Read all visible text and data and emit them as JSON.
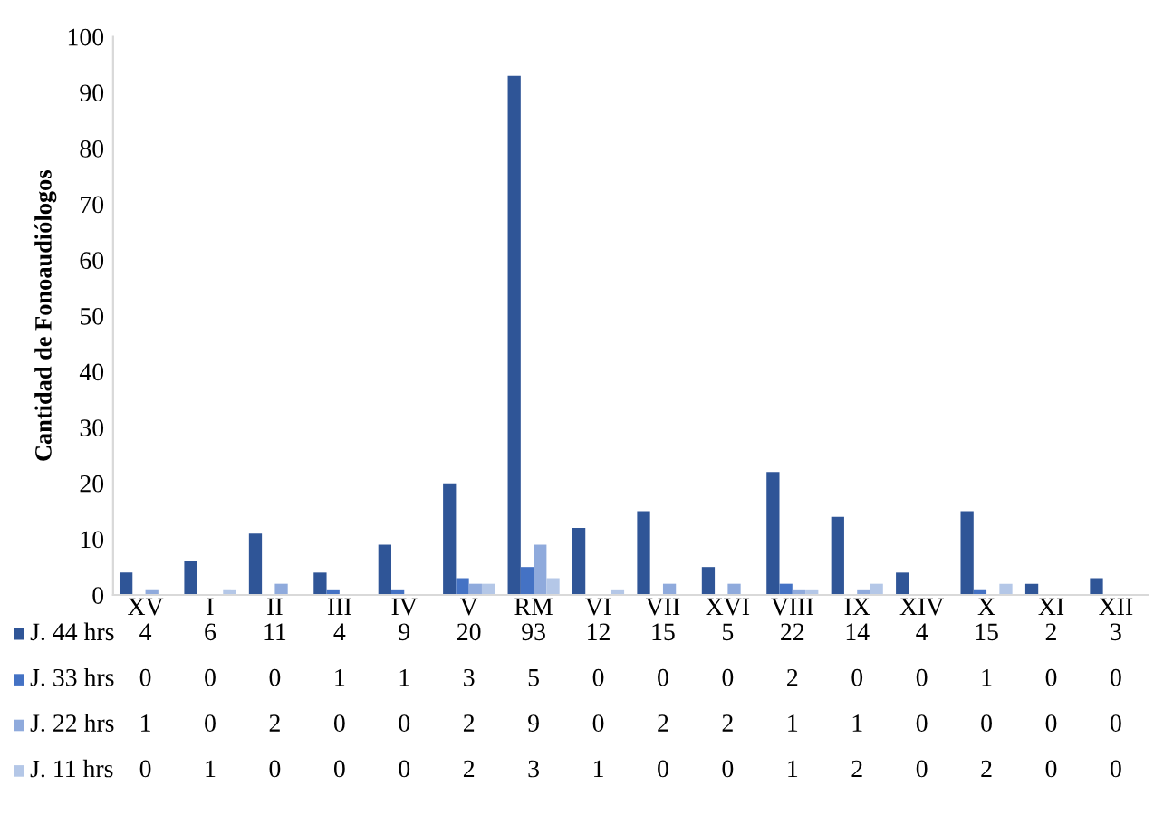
{
  "chart_data": {
    "type": "bar",
    "ylabel": "Cantidad de Fonoaudiólogos",
    "categories": [
      "XV",
      "I",
      "II",
      "III",
      "IV",
      "V",
      "RM",
      "VI",
      "VII",
      "XVI",
      "VIII",
      "IX",
      "XIV",
      "X",
      "XI",
      "XII"
    ],
    "series": [
      {
        "name": "J. 44 hrs",
        "color": "#2f5597",
        "values": [
          4,
          6,
          11,
          4,
          9,
          20,
          93,
          12,
          15,
          5,
          22,
          14,
          4,
          15,
          2,
          3
        ]
      },
      {
        "name": "J. 33 hrs",
        "color": "#4472c4",
        "values": [
          0,
          0,
          0,
          1,
          1,
          3,
          5,
          0,
          0,
          0,
          2,
          0,
          0,
          1,
          0,
          0
        ]
      },
      {
        "name": "J. 22 hrs",
        "color": "#8faadc",
        "values": [
          1,
          0,
          2,
          0,
          0,
          2,
          9,
          0,
          2,
          2,
          1,
          1,
          0,
          0,
          0,
          0
        ]
      },
      {
        "name": "J. 11 hrs",
        "color": "#b4c7e7",
        "values": [
          0,
          1,
          0,
          0,
          0,
          2,
          3,
          1,
          0,
          0,
          1,
          2,
          0,
          2,
          0,
          0
        ]
      }
    ],
    "ylim": [
      0,
      100
    ],
    "yticks": [
      0,
      10,
      20,
      30,
      40,
      50,
      60,
      70,
      80,
      90,
      100
    ],
    "grid": false,
    "data_labels": true,
    "legend": "bottom left"
  }
}
